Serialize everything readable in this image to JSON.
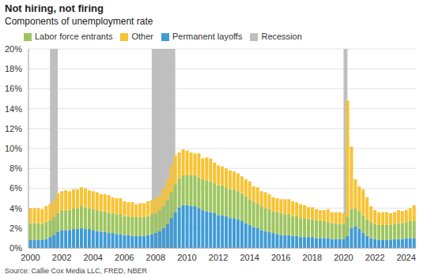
{
  "chart_data": {
    "type": "bar",
    "title": "Not hiring, not firing",
    "subtitle": "Components of unemployment rate",
    "source": "Source: Callie Cox Media LLC, FRED, NBER",
    "stacked": true,
    "grid": true,
    "legend": "top-left",
    "categories": [
      "2000",
      null,
      null,
      null,
      null,
      null,
      null,
      null,
      "2002",
      null,
      null,
      null,
      null,
      null,
      null,
      null,
      "2004",
      null,
      null,
      null,
      null,
      null,
      null,
      null,
      "2006",
      null,
      null,
      null,
      null,
      null,
      null,
      null,
      "2008",
      null,
      null,
      null,
      null,
      null,
      null,
      null,
      "2010",
      null,
      null,
      null,
      null,
      null,
      null,
      null,
      "2012",
      null,
      null,
      null,
      null,
      null,
      null,
      null,
      "2014",
      null,
      null,
      null,
      null,
      null,
      null,
      null,
      "2016",
      null,
      null,
      null,
      null,
      null,
      null,
      null,
      "2018",
      null,
      null,
      null,
      null,
      null,
      null,
      null,
      "2020",
      null,
      null,
      null,
      null,
      null,
      null,
      null,
      "2022",
      null,
      null,
      null,
      null,
      null,
      null,
      null,
      "2024",
      null,
      null
    ],
    "ylim": [
      0,
      20
    ],
    "yticks": [
      {
        "value": 0,
        "label": "0%"
      },
      {
        "value": 2,
        "label": "2%"
      },
      {
        "value": 4,
        "label": "4%"
      },
      {
        "value": 6,
        "label": "6%"
      },
      {
        "value": 8,
        "label": "8%"
      },
      {
        "value": 10,
        "label": "10%"
      },
      {
        "value": 12,
        "label": "12%"
      },
      {
        "value": 14,
        "label": "14%"
      },
      {
        "value": 16,
        "label": "16%"
      },
      {
        "value": 18,
        "label": "18%"
      },
      {
        "value": 20,
        "label": "20%"
      }
    ],
    "series": [
      {
        "name": "Recession",
        "type": "area",
        "color": "#bfbfbf",
        "values": [
          null,
          null,
          null,
          null,
          null,
          20,
          20,
          20,
          null,
          null,
          null,
          null,
          null,
          null,
          null,
          null,
          null,
          null,
          null,
          null,
          null,
          null,
          null,
          null,
          null,
          null,
          null,
          null,
          null,
          null,
          null,
          20,
          20,
          20,
          20,
          20,
          20,
          20,
          null,
          null,
          null,
          null,
          null,
          null,
          null,
          null,
          null,
          null,
          null,
          null,
          null,
          null,
          null,
          null,
          null,
          null,
          null,
          null,
          null,
          null,
          null,
          null,
          null,
          null,
          null,
          null,
          null,
          null,
          null,
          null,
          null,
          null,
          null,
          null,
          null,
          null,
          null,
          null,
          null,
          null,
          20,
          20,
          null,
          null,
          null,
          null,
          null,
          null,
          null,
          null,
          null,
          null,
          null,
          null,
          null,
          null,
          null,
          null,
          null
        ]
      },
      {
        "name": "Permanent layoffs",
        "type": "bar",
        "color": "#3f9bd6",
        "values": [
          0.8,
          0.8,
          0.8,
          0.8,
          0.9,
          1.1,
          1.3,
          1.6,
          1.8,
          1.8,
          1.8,
          1.9,
          1.9,
          2.0,
          1.9,
          1.9,
          1.8,
          1.7,
          1.6,
          1.6,
          1.5,
          1.5,
          1.4,
          1.4,
          1.3,
          1.3,
          1.2,
          1.2,
          1.2,
          1.2,
          1.3,
          1.4,
          1.5,
          1.7,
          2.0,
          2.4,
          3.0,
          3.6,
          4.1,
          4.3,
          4.3,
          4.2,
          4.2,
          4.0,
          3.8,
          3.7,
          3.6,
          3.5,
          3.3,
          3.3,
          3.2,
          3.0,
          3.0,
          2.9,
          2.7,
          2.5,
          2.3,
          2.1,
          2.0,
          1.8,
          1.7,
          1.6,
          1.5,
          1.4,
          1.3,
          1.3,
          1.3,
          1.2,
          1.2,
          1.1,
          1.1,
          1.1,
          1.1,
          1.0,
          1.0,
          1.0,
          1.0,
          0.9,
          0.9,
          0.9,
          0.9,
          1.2,
          2.0,
          2.2,
          1.9,
          1.5,
          1.2,
          1.0,
          0.9,
          0.8,
          0.8,
          0.8,
          0.8,
          0.9,
          0.9,
          0.9,
          1.0,
          1.0,
          1.0
        ]
      },
      {
        "name": "Labor force entrants",
        "type": "bar",
        "color": "#9dc55f",
        "values": [
          1.7,
          1.7,
          1.7,
          1.6,
          1.7,
          1.7,
          1.8,
          1.9,
          2.0,
          2.0,
          2.0,
          2.1,
          2.1,
          2.2,
          2.2,
          2.1,
          2.1,
          2.1,
          2.1,
          2.1,
          2.0,
          2.0,
          2.0,
          2.0,
          1.9,
          1.9,
          1.9,
          1.9,
          1.9,
          1.9,
          1.9,
          2.0,
          2.0,
          2.1,
          2.2,
          2.4,
          2.6,
          2.8,
          2.9,
          3.0,
          3.0,
          3.1,
          3.1,
          3.1,
          3.1,
          3.1,
          3.1,
          3.0,
          3.0,
          3.0,
          2.9,
          2.9,
          2.9,
          2.8,
          2.8,
          2.7,
          2.6,
          2.5,
          2.5,
          2.4,
          2.3,
          2.3,
          2.2,
          2.2,
          2.2,
          2.1,
          2.1,
          2.0,
          2.0,
          1.9,
          1.9,
          1.8,
          1.8,
          1.8,
          1.7,
          1.7,
          1.6,
          1.6,
          1.6,
          1.5,
          1.5,
          1.9,
          1.9,
          1.8,
          1.8,
          1.8,
          1.7,
          1.6,
          1.5,
          1.5,
          1.5,
          1.5,
          1.5,
          1.5,
          1.6,
          1.6,
          1.6,
          1.7,
          1.7
        ]
      },
      {
        "name": "Other",
        "type": "bar",
        "color": "#f8c332",
        "values": [
          1.5,
          1.5,
          1.5,
          1.5,
          1.6,
          1.6,
          1.7,
          2.0,
          1.9,
          2.0,
          1.9,
          1.9,
          1.9,
          1.9,
          1.9,
          1.8,
          1.8,
          1.8,
          1.7,
          1.7,
          1.8,
          1.6,
          1.6,
          1.6,
          1.5,
          1.4,
          1.5,
          1.3,
          1.4,
          1.4,
          1.5,
          1.4,
          1.5,
          1.5,
          1.8,
          2.1,
          2.7,
          2.9,
          2.6,
          2.6,
          2.5,
          2.3,
          2.2,
          2.4,
          2.1,
          2.3,
          2.3,
          2.1,
          2.0,
          1.9,
          1.9,
          1.9,
          1.8,
          1.8,
          1.7,
          1.7,
          1.8,
          1.6,
          1.6,
          1.5,
          1.6,
          1.5,
          1.4,
          1.4,
          1.4,
          1.5,
          1.5,
          1.5,
          1.4,
          1.4,
          1.3,
          1.2,
          1.2,
          1.1,
          1.1,
          1.1,
          1.3,
          1.1,
          1.1,
          1.2,
          1.1,
          11.7,
          6.3,
          2.9,
          2.5,
          2.6,
          2.2,
          1.6,
          1.4,
          1.3,
          1.3,
          1.3,
          1.2,
          1.2,
          1.3,
          1.2,
          1.2,
          1.3,
          1.6
        ]
      }
    ]
  }
}
